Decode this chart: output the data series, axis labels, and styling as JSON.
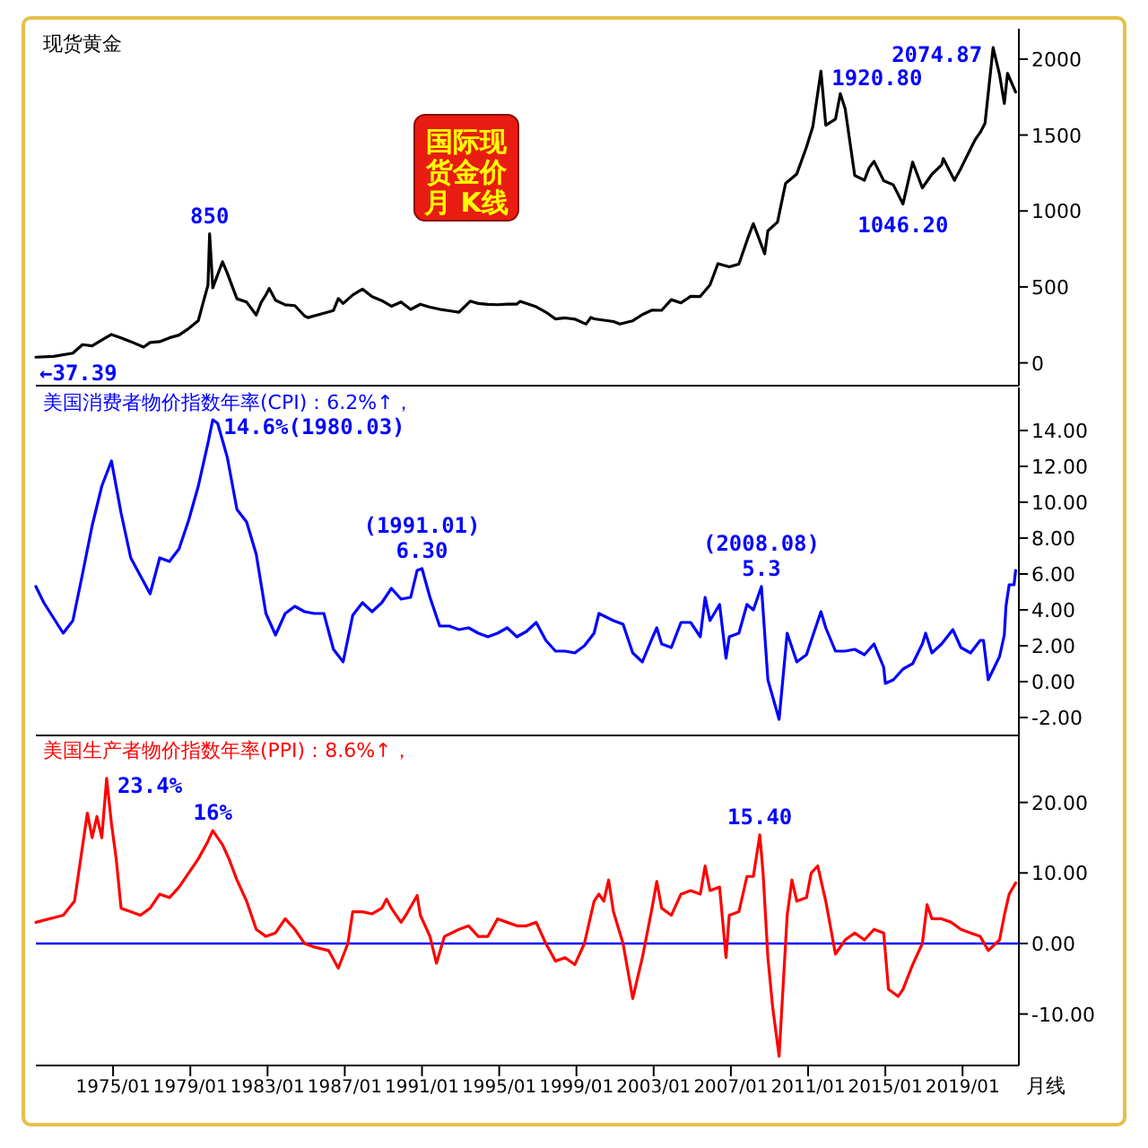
{
  "chart_data": [
    {
      "type": "line",
      "title": "现货黄金",
      "subtitle": "国际现货金价月 K线",
      "color": "#000000",
      "x": [
        "1971-01",
        "1971-12",
        "1972-12",
        "1973-06",
        "1973-12",
        "1974-06",
        "1974-12",
        "1975-06",
        "1975-12",
        "1976-08",
        "1976-12",
        "1977-06",
        "1977-12",
        "1978-06",
        "1978-12",
        "1979-06",
        "1979-09",
        "1979-12",
        "1980-01",
        "1980-03",
        "1980-09",
        "1980-12",
        "1981-06",
        "1981-12",
        "1982-06",
        "1982-09",
        "1982-12",
        "1983-02",
        "1983-06",
        "1983-12",
        "1984-06",
        "1984-12",
        "1985-02",
        "1985-12",
        "1986-06",
        "1986-09",
        "1986-12",
        "1987-06",
        "1987-12",
        "1988-06",
        "1988-12",
        "1989-06",
        "1989-12",
        "1990-06",
        "1990-12",
        "1991-06",
        "1991-12",
        "1992-06",
        "1992-12",
        "1993-07",
        "1993-12",
        "1994-06",
        "1994-12",
        "1995-06",
        "1995-12",
        "1996-02",
        "1996-12",
        "1997-06",
        "1997-12",
        "1998-06",
        "1998-12",
        "1999-07",
        "1999-10",
        "1999-12",
        "2000-12",
        "2001-04",
        "2001-12",
        "2002-06",
        "2002-12",
        "2003-06",
        "2003-12",
        "2004-06",
        "2004-12",
        "2005-06",
        "2005-12",
        "2006-05",
        "2006-12",
        "2007-06",
        "2007-12",
        "2008-03",
        "2008-10",
        "2008-12",
        "2009-06",
        "2009-11",
        "2010-06",
        "2010-12",
        "2011-04",
        "2011-09",
        "2011-12",
        "2012-06",
        "2012-09",
        "2012-12",
        "2013-06",
        "2013-12",
        "2014-03",
        "2014-06",
        "2014-12",
        "2015-06",
        "2015-12",
        "2016-06",
        "2016-12",
        "2017-06",
        "2017-12",
        "2018-01",
        "2018-08",
        "2018-12",
        "2019-06",
        "2019-09",
        "2019-12",
        "2020-03",
        "2020-08",
        "2020-12",
        "2021-03",
        "2021-05",
        "2021-10"
      ],
      "values": [
        37.39,
        43,
        64,
        120,
        112,
        150,
        187,
        165,
        140,
        104,
        134,
        140,
        165,
        183,
        226,
        278,
        397,
        512,
        850,
        494,
        666,
        590,
        422,
        400,
        315,
        397,
        448,
        490,
        412,
        382,
        377,
        309,
        298,
        327,
        345,
        423,
        391,
        447,
        486,
        436,
        410,
        373,
        401,
        352,
        386,
        367,
        353,
        343,
        333,
        406,
        391,
        385,
        383,
        387,
        387,
        405,
        369,
        334,
        289,
        296,
        288,
        255,
        299,
        290,
        272,
        256,
        277,
        318,
        347,
        346,
        416,
        395,
        438,
        437,
        513,
        653,
        632,
        650,
        834,
        917,
        718,
        870,
        927,
        1182,
        1244,
        1421,
        1556,
        1920.8,
        1565,
        1604,
        1772,
        1675,
        1234,
        1202,
        1284,
        1327,
        1199,
        1172,
        1046.2,
        1322,
        1152,
        1242,
        1303,
        1345,
        1202,
        1281,
        1409,
        1472,
        1517,
        1577,
        2074.87,
        1898,
        1708,
        1906,
        1783
      ],
      "xlim": [
        "1971-01",
        "2021-12"
      ],
      "ylim": [
        -150,
        2200
      ],
      "yticks": [
        0,
        500,
        1000,
        1500,
        2000
      ],
      "tick_labels": "y",
      "annotations": [
        {
          "text": "850",
          "x": "1980-01",
          "y": 850
        },
        {
          "text": "1920.80",
          "x": "2011-09",
          "y": 1920.8
        },
        {
          "text": "1046.20",
          "x": "2015-12",
          "y": 1046.2
        },
        {
          "text": "2074.87",
          "x": "2020-08",
          "y": 2074.87
        },
        {
          "text": "←37.39",
          "x": "1971-01",
          "y": 37.39
        }
      ]
    },
    {
      "type": "line",
      "title": "美国消费者物价指数年率(CPI)：6.2%↑，",
      "color": "#0000ff",
      "x": [
        "1971-01",
        "1971-06",
        "1972-06",
        "1972-12",
        "1973-06",
        "1973-12",
        "1974-06",
        "1974-12",
        "1975-06",
        "1975-12",
        "1976-06",
        "1976-12",
        "1977-06",
        "1977-12",
        "1978-06",
        "1978-12",
        "1979-06",
        "1979-12",
        "1980-03",
        "1980-06",
        "1980-12",
        "1981-06",
        "1981-12",
        "1982-06",
        "1982-12",
        "1983-06",
        "1983-12",
        "1984-06",
        "1984-12",
        "1985-06",
        "1985-12",
        "1986-06",
        "1986-12",
        "1987-06",
        "1987-12",
        "1988-06",
        "1988-12",
        "1989-06",
        "1989-12",
        "1990-06",
        "1990-10",
        "1991-01",
        "1991-06",
        "1991-12",
        "1992-06",
        "1992-12",
        "1993-06",
        "1993-12",
        "1994-06",
        "1994-12",
        "1995-06",
        "1995-12",
        "1996-06",
        "1996-12",
        "1997-06",
        "1997-12",
        "1998-06",
        "1998-12",
        "1999-06",
        "1999-12",
        "2000-03",
        "2000-12",
        "2001-06",
        "2001-12",
        "2002-06",
        "2002-12",
        "2003-03",
        "2003-06",
        "2003-12",
        "2004-06",
        "2004-12",
        "2005-06",
        "2005-09",
        "2005-12",
        "2006-06",
        "2006-10",
        "2006-12",
        "2007-06",
        "2007-11",
        "2008-03",
        "2008-08",
        "2008-12",
        "2009-07",
        "2009-12",
        "2010-06",
        "2010-12",
        "2011-09",
        "2011-12",
        "2012-06",
        "2012-12",
        "2013-06",
        "2013-12",
        "2014-06",
        "2014-12",
        "2015-01",
        "2015-06",
        "2015-12",
        "2016-06",
        "2016-12",
        "2017-02",
        "2017-06",
        "2017-12",
        "2018-07",
        "2018-12",
        "2019-06",
        "2019-12",
        "2020-02",
        "2020-05",
        "2020-12",
        "2021-03",
        "2021-04",
        "2021-06",
        "2021-09",
        "2021-10"
      ],
      "values": [
        5.3,
        4.4,
        2.7,
        3.4,
        6.0,
        8.7,
        10.9,
        12.3,
        9.4,
        6.9,
        5.9,
        4.9,
        6.9,
        6.7,
        7.4,
        9.0,
        10.9,
        13.3,
        14.6,
        14.4,
        12.5,
        9.6,
        8.9,
        7.1,
        3.8,
        2.6,
        3.8,
        4.2,
        3.9,
        3.8,
        3.8,
        1.8,
        1.1,
        3.7,
        4.4,
        3.9,
        4.4,
        5.2,
        4.6,
        4.7,
        6.2,
        6.3,
        4.7,
        3.1,
        3.1,
        2.9,
        3.0,
        2.7,
        2.5,
        2.7,
        3.0,
        2.5,
        2.8,
        3.3,
        2.3,
        1.7,
        1.7,
        1.6,
        2.0,
        2.7,
        3.8,
        3.4,
        3.2,
        1.6,
        1.1,
        2.4,
        3.0,
        2.1,
        1.9,
        3.3,
        3.3,
        2.5,
        4.7,
        3.4,
        4.3,
        1.3,
        2.5,
        2.7,
        4.3,
        4.0,
        5.3,
        0.1,
        -2.1,
        2.7,
        1.1,
        1.5,
        3.9,
        3.0,
        1.7,
        1.7,
        1.8,
        1.5,
        2.1,
        0.8,
        -0.1,
        0.1,
        0.7,
        1.0,
        2.1,
        2.7,
        1.6,
        2.1,
        2.9,
        1.9,
        1.6,
        2.3,
        2.3,
        0.1,
        1.4,
        2.6,
        4.2,
        5.4,
        5.4,
        6.2
      ],
      "xlim": [
        "1971-01",
        "2021-12"
      ],
      "ylim": [
        -3,
        16.4
      ],
      "yticks": [
        {
          "value": -2,
          "label": "-2.00"
        },
        {
          "value": 0,
          "label": "0.00"
        },
        {
          "value": 2,
          "label": "2.00"
        },
        {
          "value": 4,
          "label": "4.00"
        },
        {
          "value": 6,
          "label": "6.00"
        },
        {
          "value": 8,
          "label": "8.00"
        },
        {
          "value": 10,
          "label": "10.00"
        },
        {
          "value": 12,
          "label": "12.00"
        },
        {
          "value": 14,
          "label": "14.00"
        }
      ],
      "tick_labels": "y",
      "annotations": [
        {
          "text": "14.6%(1980.03)",
          "x": "1980-03",
          "y": 14.6
        },
        {
          "text": "(1991.01)\n6.30",
          "x": "1991-01",
          "y": 6.3
        },
        {
          "text": "(2008.08)\n5.3",
          "x": "2008-08",
          "y": 5.3
        }
      ]
    },
    {
      "type": "line",
      "title": "美国生产者物价指数年率(PPI)：8.6%↑，",
      "color": "#ff0000",
      "x": [
        "1971-01",
        "1972-06",
        "1973-01",
        "1973-09",
        "1973-12",
        "1974-03",
        "1974-06",
        "1974-09",
        "1974-12",
        "1975-03",
        "1975-06",
        "1975-12",
        "1976-06",
        "1976-12",
        "1977-06",
        "1977-12",
        "1978-06",
        "1978-12",
        "1979-06",
        "1979-12",
        "1980-03",
        "1980-09",
        "1981-01",
        "1981-06",
        "1981-12",
        "1982-06",
        "1982-12",
        "1983-06",
        "1983-12",
        "1984-06",
        "1984-12",
        "1985-06",
        "1986-03",
        "1986-09",
        "1987-03",
        "1987-06",
        "1987-12",
        "1988-06",
        "1988-12",
        "1989-03",
        "1989-06",
        "1989-12",
        "1990-03",
        "1990-10",
        "1990-12",
        "1991-06",
        "1991-10",
        "1992-03",
        "1992-12",
        "1993-06",
        "1993-12",
        "1994-06",
        "1994-12",
        "1995-06",
        "1995-12",
        "1996-06",
        "1996-12",
        "1997-06",
        "1997-12",
        "1998-06",
        "1998-12",
        "1999-06",
        "1999-12",
        "2000-03",
        "2000-06",
        "2000-09",
        "2000-12",
        "2001-06",
        "2001-12",
        "2002-06",
        "2002-12",
        "2003-03",
        "2003-06",
        "2003-12",
        "2004-06",
        "2004-12",
        "2005-06",
        "2005-09",
        "2005-12",
        "2006-06",
        "2006-10",
        "2006-12",
        "2007-06",
        "2007-11",
        "2008-03",
        "2008-07",
        "2008-09",
        "2008-12",
        "2009-03",
        "2009-07",
        "2009-12",
        "2010-03",
        "2010-06",
        "2010-12",
        "2011-03",
        "2011-07",
        "2011-12",
        "2012-06",
        "2012-12",
        "2013-06",
        "2013-12",
        "2014-06",
        "2014-12",
        "2015-03",
        "2015-09",
        "2015-12",
        "2016-06",
        "2016-12",
        "2017-03",
        "2017-06",
        "2017-12",
        "2018-06",
        "2018-12",
        "2019-06",
        "2019-12",
        "2020-05",
        "2020-12",
        "2021-03",
        "2021-06",
        "2021-10"
      ],
      "values": [
        3,
        4,
        6,
        18.5,
        15,
        18,
        15,
        23.4,
        17,
        12,
        5,
        4.5,
        4,
        5,
        7,
        6.5,
        8,
        10,
        12,
        14.5,
        16,
        14,
        12,
        9,
        6,
        2,
        1,
        1.5,
        3.5,
        2,
        0,
        -0.5,
        -1,
        -3.5,
        0,
        4.5,
        4.5,
        4.2,
        5,
        6.3,
        5,
        3,
        4,
        6.8,
        4,
        1,
        -2.8,
        1,
        2,
        2.5,
        1,
        1,
        3.5,
        3,
        2.5,
        2.5,
        3,
        0,
        -2.5,
        -2,
        -3,
        0,
        6,
        7,
        6,
        9,
        4.5,
        0,
        -7.8,
        -2,
        5,
        8.8,
        5,
        4,
        7,
        7.5,
        7,
        11,
        7.5,
        8,
        -2,
        4,
        4.5,
        9.5,
        9.5,
        15.4,
        10,
        -2,
        -9,
        -16,
        4,
        9,
        6,
        6.5,
        10,
        11,
        6,
        -1.5,
        0.5,
        1.5,
        0.5,
        2,
        1.5,
        -6.5,
        -7.5,
        -6.5,
        -3,
        0,
        5.5,
        3.5,
        3.5,
        3,
        2,
        1.5,
        1,
        -1,
        0.5,
        4,
        7,
        8.6
      ],
      "xlim": [
        "1971-01",
        "2021-12"
      ],
      "ylim": [
        -17.3,
        29.5
      ],
      "yticks": [
        {
          "value": -10,
          "label": "-10.00"
        },
        {
          "value": 0,
          "label": "0.00"
        },
        {
          "value": 10,
          "label": "10.00"
        },
        {
          "value": 20,
          "label": "20.00"
        }
      ],
      "xticks": [
        {
          "value": "1975-01",
          "label": "1975/01"
        },
        {
          "value": "1979-01",
          "label": "1979/01"
        },
        {
          "value": "1983-01",
          "label": "1983/01"
        },
        {
          "value": "1987-01",
          "label": "1987/01"
        },
        {
          "value": "1991-01",
          "label": "1991/01"
        },
        {
          "value": "1995-01",
          "label": "1995/01"
        },
        {
          "value": "1999-01",
          "label": "1999/01"
        },
        {
          "value": "2003-01",
          "label": "2003/01"
        },
        {
          "value": "2007-01",
          "label": "2007/01"
        },
        {
          "value": "2011-01",
          "label": "2011/01"
        },
        {
          "value": "2015-01",
          "label": "2015/01"
        },
        {
          "value": "2019-01",
          "label": "2019/01"
        }
      ],
      "xlabel": "月线",
      "ref_lines": [
        {
          "axis": "y",
          "value": 0,
          "color": "#0000ff"
        }
      ],
      "annotations": [
        {
          "text": "23.4%",
          "x": "1974-09",
          "y": 23.4
        },
        {
          "text": "16%",
          "x": "1980-03",
          "y": 16
        },
        {
          "text": "15.40",
          "x": "2008-07",
          "y": 15.4
        }
      ]
    }
  ]
}
